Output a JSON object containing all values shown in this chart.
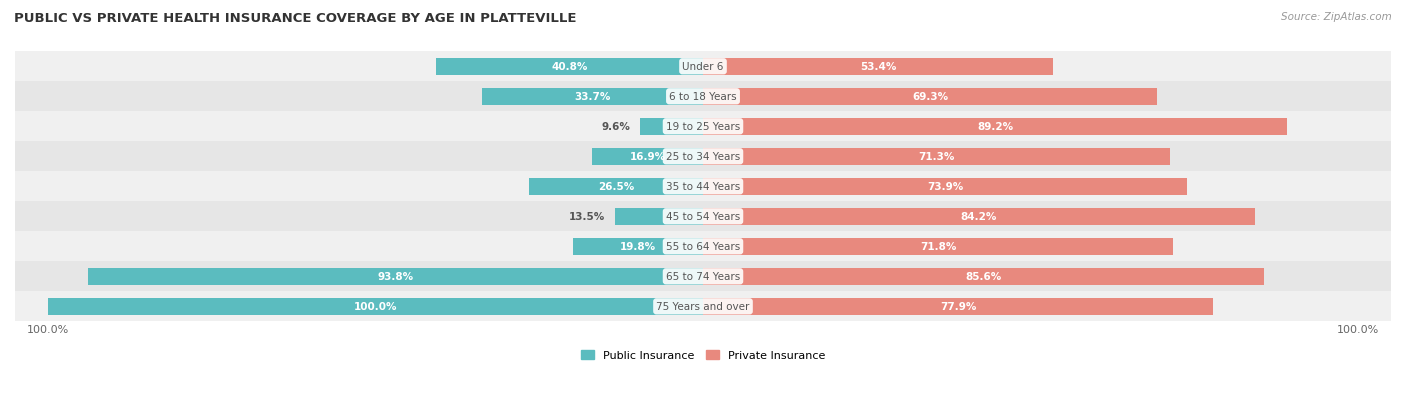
{
  "title": "PUBLIC VS PRIVATE HEALTH INSURANCE COVERAGE BY AGE IN PLATTEVILLE",
  "source": "Source: ZipAtlas.com",
  "categories": [
    "Under 6",
    "6 to 18 Years",
    "19 to 25 Years",
    "25 to 34 Years",
    "35 to 44 Years",
    "45 to 54 Years",
    "55 to 64 Years",
    "65 to 74 Years",
    "75 Years and over"
  ],
  "public_values": [
    40.8,
    33.7,
    9.6,
    16.9,
    26.5,
    13.5,
    19.8,
    93.8,
    100.0
  ],
  "private_values": [
    53.4,
    69.3,
    89.2,
    71.3,
    73.9,
    84.2,
    71.8,
    85.6,
    77.9
  ],
  "public_color": "#5bbcbf",
  "private_color": "#e8897e",
  "row_bg_colors": [
    "#f0f0f0",
    "#e6e6e6"
  ],
  "title_color": "#333333",
  "value_color_dark": "#555555",
  "center_label_color": "#555555",
  "bar_height": 0.55,
  "figsize": [
    14.06,
    4.14
  ],
  "dpi": 100,
  "pub_threshold": 15,
  "priv_threshold": 15
}
